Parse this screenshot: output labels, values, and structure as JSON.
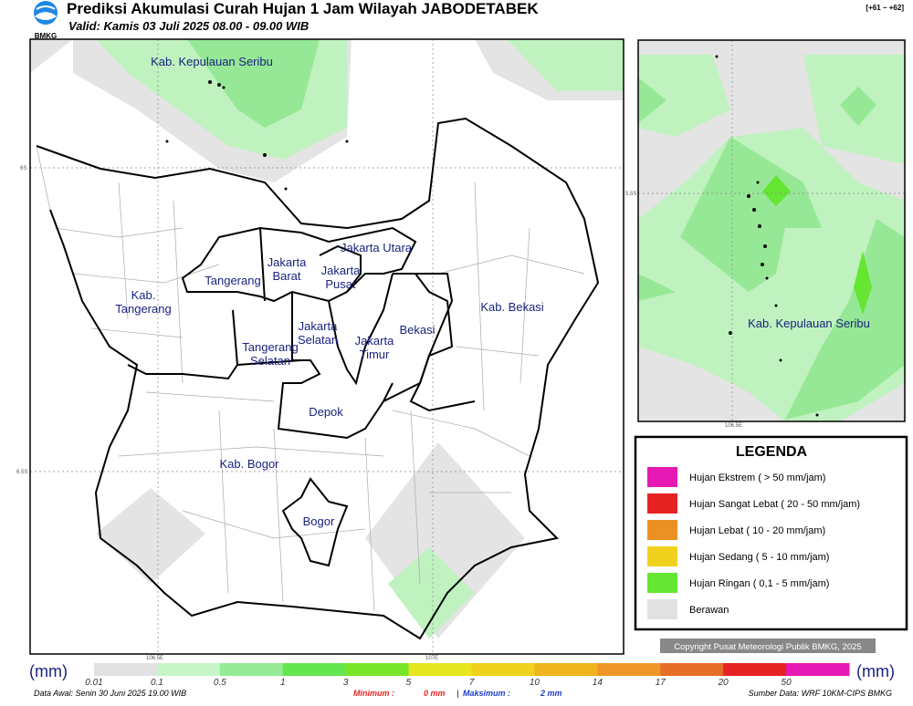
{
  "header": {
    "title": "Prediksi Akumulasi Curah Hujan 1 Jam Wilayah JABODETABEK",
    "valid": "Valid: Kamis 03 Juli 2025 08.00 - 09.00 WIB",
    "range": "[+61 ~ +62]",
    "logo": "BMKG"
  },
  "map": {
    "labels": [
      "Kab. Kepulauan Seribu",
      "Jakarta Utara",
      [
        "Jakarta",
        "Barat"
      ],
      [
        "Jakarta",
        "Pusat"
      ],
      "Tangerang",
      [
        "Kab.",
        "Tangerang"
      ],
      [
        "Jakarta",
        "Selatan"
      ],
      [
        "Jakarta",
        "Timur"
      ],
      "Bekasi",
      "Kab. Bekasi",
      [
        "Tangerang",
        "Selatan"
      ],
      "Depok",
      "Kab. Bogor",
      "Bogor"
    ],
    "coords": [
      "6S",
      "6.5S",
      "106.5E",
      "107E"
    ]
  },
  "inset": {
    "label": "Kab. Kepulauan Seribu",
    "coords": [
      "5.5S",
      "106.5E"
    ]
  },
  "legend": {
    "title": "LEGENDA",
    "items": [
      {
        "label": "Hujan Ekstrem ( > 50 mm/jam)",
        "color": "#e619b4"
      },
      {
        "label": "Hujan Sangat Lebat ( 20 - 50 mm/jam)",
        "color": "#e62323"
      },
      {
        "label": "Hujan Lebat ( 10 - 20 mm/jam)",
        "color": "#eb9123"
      },
      {
        "label": "Hujan Sedang ( 5 - 10 mm/jam)",
        "color": "#f0d21e"
      },
      {
        "label": "Hujan Ringan ( 0,1 - 5 mm/jam)",
        "color": "#64e632"
      },
      {
        "label": "Berawan",
        "color": "#e1e1e1"
      }
    ]
  },
  "colorbar": {
    "unit": "(mm)",
    "labels": [
      "0.01",
      "0.1",
      "0.5",
      "1",
      "3",
      "5",
      "7",
      "10",
      "14",
      "17",
      "20",
      "50"
    ],
    "colors": [
      "#e1e1e1",
      "#c8f5c8",
      "#96eb96",
      "#64e650",
      "#78e628",
      "#e6e61e",
      "#f0d21e",
      "#f0b41e",
      "#f09628",
      "#e66e28",
      "#e62323",
      "#e619b4"
    ]
  },
  "footer": {
    "data_awal": "Data Awal: Senin 30 Juni 2025 19.00 WIB",
    "minimum_label": "Minimum :",
    "minimum": "0 mm",
    "maksimum_label": "Maksimum :",
    "maksimum": "2 mm",
    "source": "Sumber Data: WRF 10KM-CIPS BMKG",
    "copyright": "Copyright Pusat Meteorologi Publik BMKG, 2025"
  }
}
